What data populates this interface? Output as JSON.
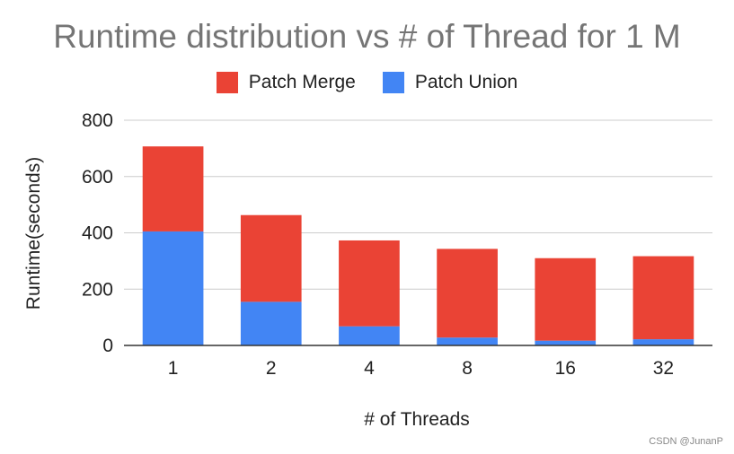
{
  "chart_data": {
    "type": "bar",
    "stacked": true,
    "title": "Runtime distribution vs # of Thread for 1 M",
    "xlabel": "# of Threads",
    "ylabel": "Runtime(seconds)",
    "categories": [
      "1",
      "2",
      "4",
      "8",
      "16",
      "32"
    ],
    "ylim": [
      0,
      800
    ],
    "yticks": [
      "0",
      "200",
      "400",
      "600",
      "800"
    ],
    "grid": true,
    "legend_position": "top",
    "series": [
      {
        "name": "Patch Union",
        "color": "#4285F4",
        "values": [
          405,
          155,
          68,
          28,
          17,
          22
        ]
      },
      {
        "name": "Patch Merge",
        "color": "#EA4335",
        "values": [
          302,
          308,
          305,
          315,
          293,
          295
        ]
      }
    ]
  },
  "legend": {
    "merge_label": "Patch Merge",
    "union_label": "Patch Union",
    "merge_color": "#EA4335",
    "union_color": "#4285F4"
  },
  "watermark": "CSDN @JunanP"
}
